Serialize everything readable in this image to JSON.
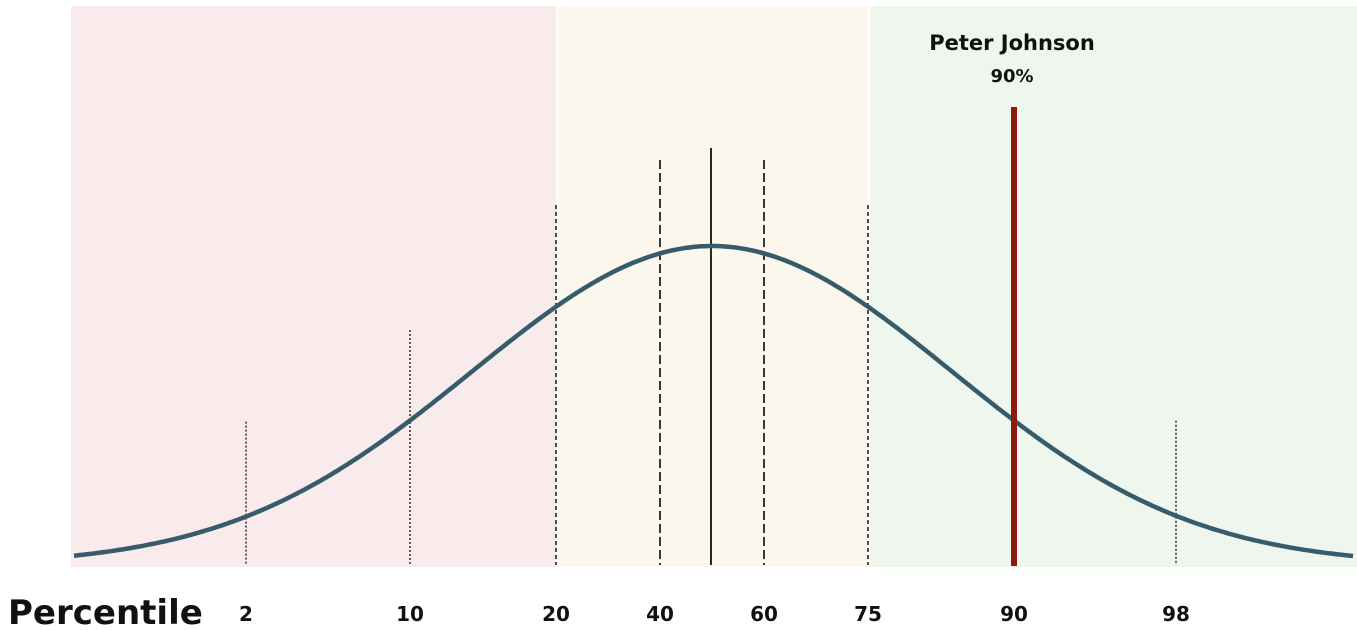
{
  "chart_data": {
    "type": "area",
    "xlabel": "Percentile",
    "ticks": [
      {
        "label": "2",
        "value": 2,
        "style": "dotted"
      },
      {
        "label": "10",
        "value": 10,
        "style": "dotted"
      },
      {
        "label": "20",
        "value": 20,
        "style": "dashed"
      },
      {
        "label": "40",
        "value": 40,
        "style": "dashed-long"
      },
      {
        "label": "60",
        "value": 60,
        "style": "dashed-long"
      },
      {
        "label": "75",
        "value": 75,
        "style": "dashed"
      },
      {
        "label": "90",
        "value": 90,
        "style": "none"
      },
      {
        "label": "98",
        "value": 98,
        "style": "dotted"
      }
    ],
    "median": 50,
    "bands": [
      {
        "from": 0,
        "to": 20,
        "color": "#f9ebeb"
      },
      {
        "from": 20,
        "to": 75,
        "color": "#fbf7ec"
      },
      {
        "from": 75,
        "to": 100,
        "color": "#eff6ee"
      }
    ],
    "curve_color": "#365b6a",
    "marker": {
      "name": "Peter Johnson",
      "percent_label": "90%",
      "value": 90,
      "color": "#8b1a10"
    }
  }
}
